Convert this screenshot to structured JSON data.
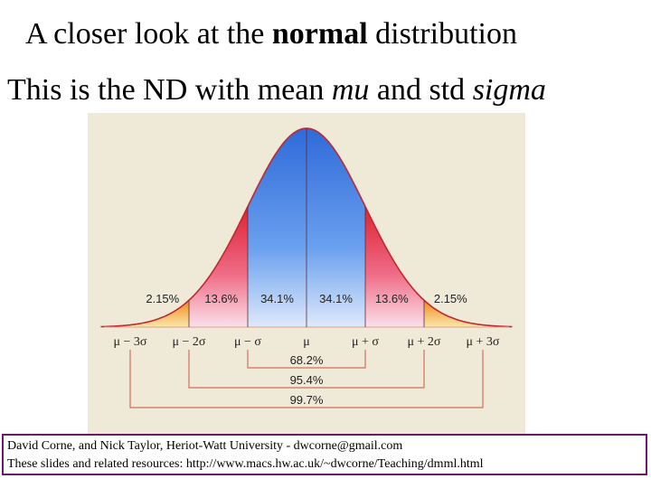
{
  "slide": {
    "title_line1": {
      "before": "A closer look at the ",
      "bold": "normal",
      "after": " distribution"
    },
    "title_line2": {
      "p1": "This is the ND with mean ",
      "mu": "mu",
      "p2": " and std ",
      "sigma": "sigma"
    }
  },
  "figure": {
    "band_percents": [
      "2.15%",
      "13.6%",
      "34.1%",
      "34.1%",
      "13.6%",
      "2.15%"
    ],
    "axis_labels": [
      "μ − 3σ",
      "μ − 2σ",
      "μ − σ",
      "μ",
      "μ + σ",
      "μ + 2σ",
      "μ + 3σ"
    ],
    "range_percents": [
      "68.2%",
      "95.4%",
      "99.7%"
    ],
    "colors": {
      "center": "#3a74e0",
      "middle": "#e23a4a",
      "tail": "#f2a52a",
      "background": "#efe9d7",
      "bracket": "#d0705a"
    }
  },
  "footer": {
    "line1": "David Corne, and Nick Taylor,  Heriot-Watt University  -  dwcorne@gmail.com",
    "line2": "These slides and related resources:   http://www.macs.hw.ac.uk/~dwcorne/Teaching/dmml.html"
  }
}
